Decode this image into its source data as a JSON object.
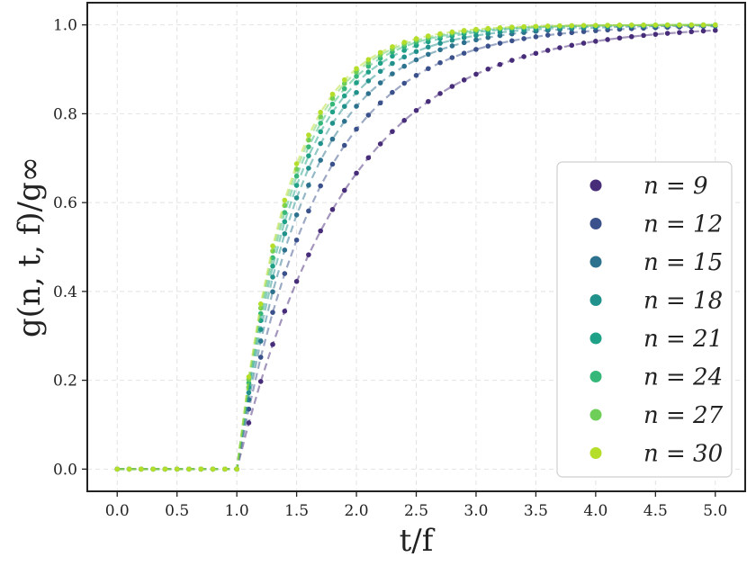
{
  "chart_data": {
    "type": "scatter",
    "xlabel": "t/f",
    "ylabel": "g(n, t, f)/g∞",
    "xlim": [
      -0.25,
      5.25
    ],
    "ylim": [
      -0.05,
      1.05
    ],
    "xticks": [
      "0.0",
      "0.5",
      "1.0",
      "1.5",
      "2.0",
      "2.5",
      "3.0",
      "3.5",
      "4.0",
      "4.5",
      "5.0"
    ],
    "yticks": [
      "0.0",
      "0.2",
      "0.4",
      "0.6",
      "0.8",
      "1.0"
    ],
    "grid": true,
    "grid_style": "dashed",
    "legend_position": "center-right",
    "markers": "points",
    "fit_lines": "dashed",
    "x": [
      0.0,
      0.1,
      0.2,
      0.3,
      0.4,
      0.5,
      0.6,
      0.7,
      0.8,
      0.9,
      1.0,
      1.1,
      1.2,
      1.3,
      1.4,
      1.5,
      1.6,
      1.7,
      1.8,
      1.9,
      2.0,
      2.1,
      2.2,
      2.3,
      2.4,
      2.5,
      2.6,
      2.7,
      2.8,
      2.9,
      3.0,
      3.1,
      3.2,
      3.3,
      3.4,
      3.5,
      3.6,
      3.7,
      3.8,
      3.9,
      4.0,
      4.1,
      4.2,
      4.3,
      4.4,
      4.5,
      4.6,
      4.7,
      4.8,
      4.9,
      5.0
    ],
    "series": [
      {
        "name": "n = 9",
        "color": "#472c7a",
        "y": [
          0,
          0,
          0,
          0,
          0,
          0,
          0,
          0,
          0,
          0,
          0,
          0.1041,
          0.1973,
          0.2807,
          0.3555,
          0.4225,
          0.4825,
          0.5362,
          0.5844,
          0.6275,
          0.6663,
          0.701,
          0.7321,
          0.76,
          0.785,
          0.8074,
          0.8275,
          0.8455,
          0.8616,
          0.8761,
          0.889,
          0.9006,
          0.911,
          0.9203,
          0.9286,
          0.936,
          0.9427,
          0.9487,
          0.9541,
          0.9589,
          0.9632,
          0.967,
          0.9705,
          0.9736,
          0.9763,
          0.9788,
          0.981,
          0.9829,
          0.9847,
          0.9863,
          0.9877
        ]
      },
      {
        "name": "n = 12",
        "color": "#3b518b",
        "y": [
          0,
          0,
          0,
          0,
          0,
          0,
          0,
          0,
          0,
          0,
          0,
          0.135,
          0.2518,
          0.3528,
          0.4401,
          0.5157,
          0.5811,
          0.6376,
          0.6865,
          0.7288,
          0.7654,
          0.797,
          0.8244,
          0.8481,
          0.8686,
          0.8863,
          0.9016,
          0.9149,
          0.9264,
          0.9363,
          0.9449,
          0.9523,
          0.9587,
          0.9643,
          0.9691,
          0.9733,
          0.9769,
          0.98,
          0.9827,
          0.985,
          0.987,
          0.9888,
          0.9903,
          0.9916,
          0.9927,
          0.9937,
          0.9945,
          0.9953,
          0.9959,
          0.9965,
          0.997
        ]
      },
      {
        "name": "n = 15",
        "color": "#2c718e",
        "y": [
          0,
          0,
          0,
          0,
          0,
          0,
          0,
          0,
          0,
          0,
          0,
          0.1563,
          0.2881,
          0.3993,
          0.4931,
          0.5723,
          0.6391,
          0.6954,
          0.7429,
          0.783,
          0.8169,
          0.8454,
          0.8695,
          0.8898,
          0.907,
          0.9215,
          0.9337,
          0.944,
          0.9528,
          0.9601,
          0.9663,
          0.9716,
          0.976,
          0.9798,
          0.9829,
          0.9856,
          0.9878,
          0.9897,
          0.9913,
          0.9927,
          0.9938,
          0.9948,
          0.9956,
          0.9963,
          0.9969,
          0.9973,
          0.9977,
          0.9981,
          0.9984,
          0.9986,
          0.9988
        ]
      },
      {
        "name": "n = 18",
        "color": "#21918c",
        "y": [
          0,
          0,
          0,
          0,
          0,
          0,
          0,
          0,
          0,
          0,
          0,
          0.172,
          0.3144,
          0.4323,
          0.5299,
          0.6106,
          0.6775,
          0.7328,
          0.7786,
          0.8165,
          0.8479,
          0.8739,
          0.8954,
          0.9132,
          0.9279,
          0.9401,
          0.9502,
          0.9586,
          0.9655,
          0.9712,
          0.976,
          0.9799,
          0.9832,
          0.9859,
          0.9882,
          0.99,
          0.9916,
          0.9929,
          0.994,
          0.9949,
          0.9956,
          0.9963,
          0.9968,
          0.9972,
          0.9976,
          0.9979,
          0.9982,
          0.9984,
          0.9986,
          0.9988,
          0.9989
        ]
      },
      {
        "name": "n = 21",
        "color": "#1fa187",
        "y": [
          0,
          0,
          0,
          0,
          0,
          0,
          0,
          0,
          0,
          0,
          0,
          0.1841,
          0.3343,
          0.4569,
          0.557,
          0.6386,
          0.7053,
          0.7596,
          0.804,
          0.8402,
          0.8698,
          0.8939,
          0.9136,
          0.9296,
          0.9427,
          0.9534,
          0.9621,
          0.9692,
          0.975,
          0.9797,
          0.9836,
          0.9867,
          0.9893,
          0.9914,
          0.9931,
          0.9945,
          0.9956,
          0.9965,
          0.9972,
          0.9978,
          0.9983,
          0.9986,
          0.9989,
          0.9991,
          0.9993,
          0.9995,
          0.9996,
          0.9997,
          0.9998,
          0.9998,
          0.9999
        ]
      },
      {
        "name": "n = 24",
        "color": "#35b779",
        "y": [
          0,
          0,
          0,
          0,
          0,
          0,
          0,
          0,
          0,
          0,
          0,
          0.1938,
          0.3501,
          0.4761,
          0.5777,
          0.6596,
          0.7256,
          0.7788,
          0.8217,
          0.8563,
          0.8842,
          0.9067,
          0.9248,
          0.9394,
          0.9512,
          0.9607,
          0.9683,
          0.9745,
          0.9794,
          0.9834,
          0.9866,
          0.9892,
          0.9913,
          0.993,
          0.9944,
          0.9955,
          0.9964,
          0.9971,
          0.9977,
          0.9982,
          0.9986,
          0.9989,
          0.9991,
          0.9993,
          0.9995,
          0.9996,
          0.9997,
          0.9998,
          0.9998,
          0.9999,
          0.9999
        ]
      },
      {
        "name": "n = 27",
        "color": "#6ece58",
        "y": [
          0,
          0,
          0,
          0,
          0,
          0,
          0,
          0,
          0,
          0,
          0,
          0.2015,
          0.3624,
          0.4908,
          0.5934,
          0.6753,
          0.7407,
          0.7929,
          0.8346,
          0.8679,
          0.8944,
          0.9156,
          0.9325,
          0.946,
          0.9568,
          0.9654,
          0.9723,
          0.9778,
          0.9822,
          0.9857,
          0.9885,
          0.9908,
          0.9926,
          0.9941,
          0.9953,
          0.9962,
          0.997,
          0.9976,
          0.9981,
          0.9985,
          0.9988,
          0.999,
          0.9992,
          0.9994,
          0.9995,
          0.9996,
          0.9997,
          0.9998,
          0.9998,
          0.9999,
          0.9999
        ]
      },
      {
        "name": "n = 30",
        "color": "#b5de2b",
        "y": [
          0,
          0,
          0,
          0,
          0,
          0,
          0,
          0,
          0,
          0,
          0,
          0.2076,
          0.372,
          0.5023,
          0.6055,
          0.6873,
          0.7521,
          0.8034,
          0.8441,
          0.8763,
          0.9018,
          0.9221,
          0.9381,
          0.9509,
          0.961,
          0.969,
          0.9753,
          0.9803,
          0.9843,
          0.9875,
          0.9901,
          0.9921,
          0.9937,
          0.995,
          0.996,
          0.9968,
          0.9975,
          0.998,
          0.9984,
          0.9987,
          0.999,
          0.9992,
          0.9994,
          0.9995,
          0.9996,
          0.9997,
          0.9998,
          0.9998,
          0.9999,
          0.9999,
          0.9999
        ]
      }
    ]
  }
}
